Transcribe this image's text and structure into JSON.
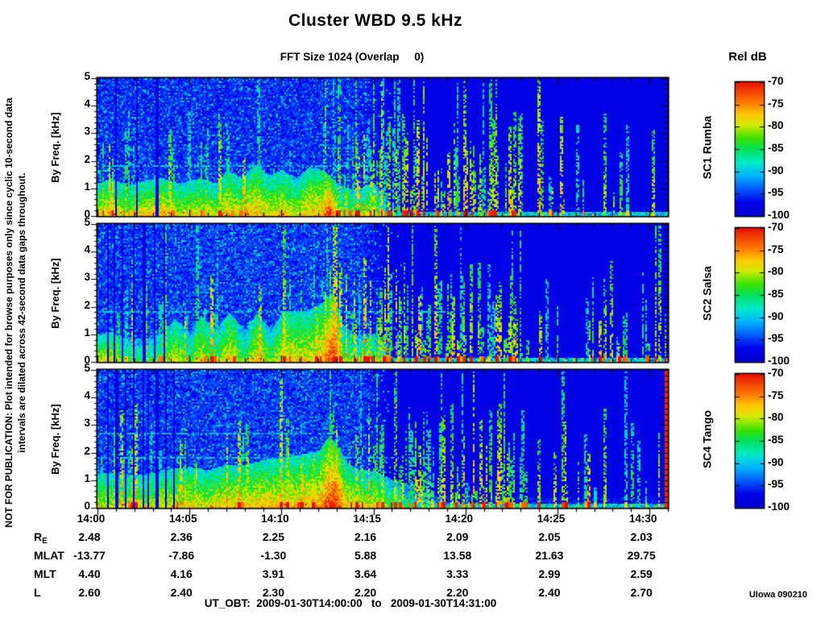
{
  "title": "Cluster WBD 9.5 kHz",
  "subtitle": "FFT Size 1024 (Overlap     0)",
  "colorbar_title": "Rel dB",
  "watermark": {
    "line1": "NOT FOR PUBLICATION:  Plot intended for browse purposes only since cyclic 10-second data",
    "line2": "intervals are dilated across 42-second data gaps throughout."
  },
  "footer": {
    "ut_obt": "UT_OBT:  2009-01-30T14:00:00   to   2009-01-30T14:31:00",
    "credit": "UIowa 090210"
  },
  "ephemeris": {
    "rows": [
      {
        "label": "R",
        "sub": "E",
        "values": [
          "2.48",
          "2.36",
          "2.25",
          "2.16",
          "2.09",
          "2.05",
          "2.03"
        ]
      },
      {
        "label": "MLAT",
        "values": [
          "-13.77",
          "-7.86",
          "-1.30",
          "5.88",
          "13.58",
          "21.63",
          "29.75"
        ]
      },
      {
        "label": "MLT",
        "values": [
          "4.40",
          "4.16",
          "3.91",
          "3.64",
          "3.33",
          "2.99",
          "2.59"
        ]
      },
      {
        "label": "L",
        "values": [
          "2.60",
          "2.40",
          "2.30",
          "2.20",
          "2.20",
          "2.40",
          "2.70"
        ]
      }
    ]
  },
  "chart_data": {
    "type": "heatmap",
    "title": "Cluster WBD 9.5 kHz",
    "subtitle": "FFT Size 1024 (Overlap 0)",
    "x": {
      "ticks": [
        "14:00",
        "14:05",
        "14:10",
        "14:15",
        "14:20",
        "14:25",
        "14:30"
      ],
      "range_minutes": [
        0,
        31
      ],
      "major_step_minutes": 5,
      "minor_step_minutes": 1,
      "start_ut": "2009-01-30T14:00:00",
      "end_ut": "2009-01-30T14:31:00"
    },
    "y": {
      "label": "By Freq. [kHz]",
      "ticks": [
        5,
        4,
        3,
        2,
        1,
        0
      ],
      "range": [
        0,
        5
      ],
      "minor_step": 0.2
    },
    "colorbar": {
      "label": "Rel dB",
      "tick_labels": [
        "-70",
        "-75",
        "-80",
        "-85",
        "-90",
        "-95",
        "-100"
      ],
      "range_db": [
        -100,
        -70
      ]
    },
    "colormap_stops": [
      [
        0.0,
        [
          0,
          0,
          205
        ]
      ],
      [
        0.1,
        [
          0,
          0,
          235
        ]
      ],
      [
        0.2,
        [
          0,
          90,
          255
        ]
      ],
      [
        0.3,
        [
          0,
          180,
          255
        ]
      ],
      [
        0.4,
        [
          0,
          235,
          200
        ]
      ],
      [
        0.5,
        [
          0,
          225,
          90
        ]
      ],
      [
        0.58,
        [
          60,
          225,
          0
        ]
      ],
      [
        0.68,
        [
          210,
          235,
          0
        ]
      ],
      [
        0.76,
        [
          255,
          200,
          0
        ]
      ],
      [
        0.85,
        [
          255,
          120,
          0
        ]
      ],
      [
        1.0,
        [
          230,
          15,
          0
        ]
      ]
    ],
    "panels": [
      {
        "name": "SC1 Rumba",
        "seed": 101,
        "streaks": 150,
        "speckle": 0.9,
        "lines": [
          {
            "f": 1.85,
            "m1": 15.8
          }
        ],
        "gaps": [
          1.0,
          2.1,
          3.2
        ],
        "gapW": 0.05,
        "end_stripe": false,
        "envelope": [
          [
            0,
            0.72,
            1.2
          ],
          [
            0.8,
            0.8,
            1.4
          ],
          [
            1.5,
            0.65,
            1.1
          ],
          [
            2.5,
            0.75,
            1.3
          ],
          [
            3.5,
            0.8,
            1.4
          ],
          [
            4.5,
            0.7,
            1.2
          ],
          [
            5.5,
            0.72,
            1.4
          ],
          [
            6.5,
            0.68,
            1.2
          ],
          [
            7,
            0.78,
            1.7
          ],
          [
            7.8,
            0.7,
            1.4
          ],
          [
            8.5,
            0.8,
            1.9
          ],
          [
            9.3,
            0.72,
            1.5
          ],
          [
            10,
            0.75,
            1.7
          ],
          [
            10.8,
            0.68,
            1.4
          ],
          [
            11.5,
            0.78,
            1.8
          ],
          [
            12.2,
            0.8,
            1.7
          ],
          [
            12.6,
            1,
            1.5
          ],
          [
            13,
            0.7,
            1.2
          ],
          [
            13.8,
            0.55,
            1
          ],
          [
            14.5,
            0.65,
            1.1
          ],
          [
            15,
            0.7,
            1.2
          ],
          [
            15.6,
            0.4,
            0.8
          ],
          [
            16,
            0.12,
            0.45
          ],
          [
            18,
            0.1,
            0.4
          ],
          [
            31,
            0.08,
            0.35
          ]
        ]
      },
      {
        "name": "SC2 Salsa",
        "seed": 202,
        "streaks": 160,
        "speckle": 1.0,
        "lines": [
          {
            "f": 1.85,
            "m1": 19
          }
        ],
        "gaps": [
          0.5,
          0.9,
          1.35,
          1.9,
          2.5,
          3.1,
          3.6
        ],
        "gapW": 0.05,
        "end_stripe": false,
        "envelope": [
          [
            0,
            0.7,
            1
          ],
          [
            0.7,
            0.75,
            1.1
          ],
          [
            1.5,
            0.55,
            0.9
          ],
          [
            2.5,
            0.5,
            0.85
          ],
          [
            3.5,
            0.6,
            1.1
          ],
          [
            4.2,
            0.72,
            1.6
          ],
          [
            5,
            0.55,
            1.1
          ],
          [
            5.6,
            0.75,
            1.7
          ],
          [
            6.4,
            0.55,
            1.2
          ],
          [
            7.1,
            0.78,
            1.8
          ],
          [
            8,
            0.55,
            1.2
          ],
          [
            8.6,
            0.78,
            1.8
          ],
          [
            9.4,
            0.58,
            1.2
          ],
          [
            10.1,
            0.78,
            1.9
          ],
          [
            11,
            0.72,
            1.8
          ],
          [
            11.8,
            0.75,
            2
          ],
          [
            12.4,
            0.85,
            2.3
          ],
          [
            12.8,
            1,
            2.6
          ],
          [
            13.3,
            0.65,
            1.4
          ],
          [
            14,
            0.5,
            1
          ],
          [
            14.8,
            0.6,
            1.1
          ],
          [
            15.5,
            0.5,
            0.9
          ],
          [
            16,
            0.12,
            0.45
          ],
          [
            18,
            0.09,
            0.38
          ],
          [
            31,
            0.08,
            0.35
          ]
        ]
      },
      {
        "name": "SC4 Tango",
        "seed": 303,
        "streaks": 150,
        "speckle": 1.0,
        "lines": [
          {
            "f": 1.85,
            "m1": 18
          },
          {
            "f": 2.72,
            "m1": 13
          }
        ],
        "gaps": [
          0.55,
          1.0,
          1.5,
          1.95,
          2.45,
          2.7,
          3.2,
          3.7,
          4.1
        ],
        "gapW": 0.06,
        "end_stripe": true,
        "envelope": [
          [
            0,
            0.7,
            1.3
          ],
          [
            1,
            0.68,
            1.25
          ],
          [
            2,
            0.66,
            1.2
          ],
          [
            3,
            0.7,
            1.3
          ],
          [
            4,
            0.72,
            1.45
          ],
          [
            5,
            0.74,
            1.5
          ],
          [
            6,
            0.7,
            1.4
          ],
          [
            7,
            0.78,
            1.6
          ],
          [
            8,
            0.74,
            1.6
          ],
          [
            9,
            0.78,
            1.75
          ],
          [
            10,
            0.78,
            1.85
          ],
          [
            11,
            0.78,
            1.95
          ],
          [
            12,
            0.8,
            2.1
          ],
          [
            12.5,
            0.95,
            2.6
          ],
          [
            12.9,
            1,
            2.4
          ],
          [
            13.6,
            0.72,
            1.6
          ],
          [
            14.3,
            0.68,
            1.4
          ],
          [
            15,
            0.7,
            1.35
          ],
          [
            16,
            0.55,
            1.05
          ],
          [
            17,
            0.4,
            0.85
          ],
          [
            18,
            0.28,
            0.65
          ],
          [
            19,
            0.18,
            0.5
          ],
          [
            20,
            0.14,
            0.45
          ],
          [
            31,
            0.12,
            0.4
          ]
        ]
      }
    ],
    "note": "Spectrogram pixels are a procedural approximation; envelope triplets are [minute_after_14:00, relative_intensity_0to1, lowband_top_kHz]."
  }
}
